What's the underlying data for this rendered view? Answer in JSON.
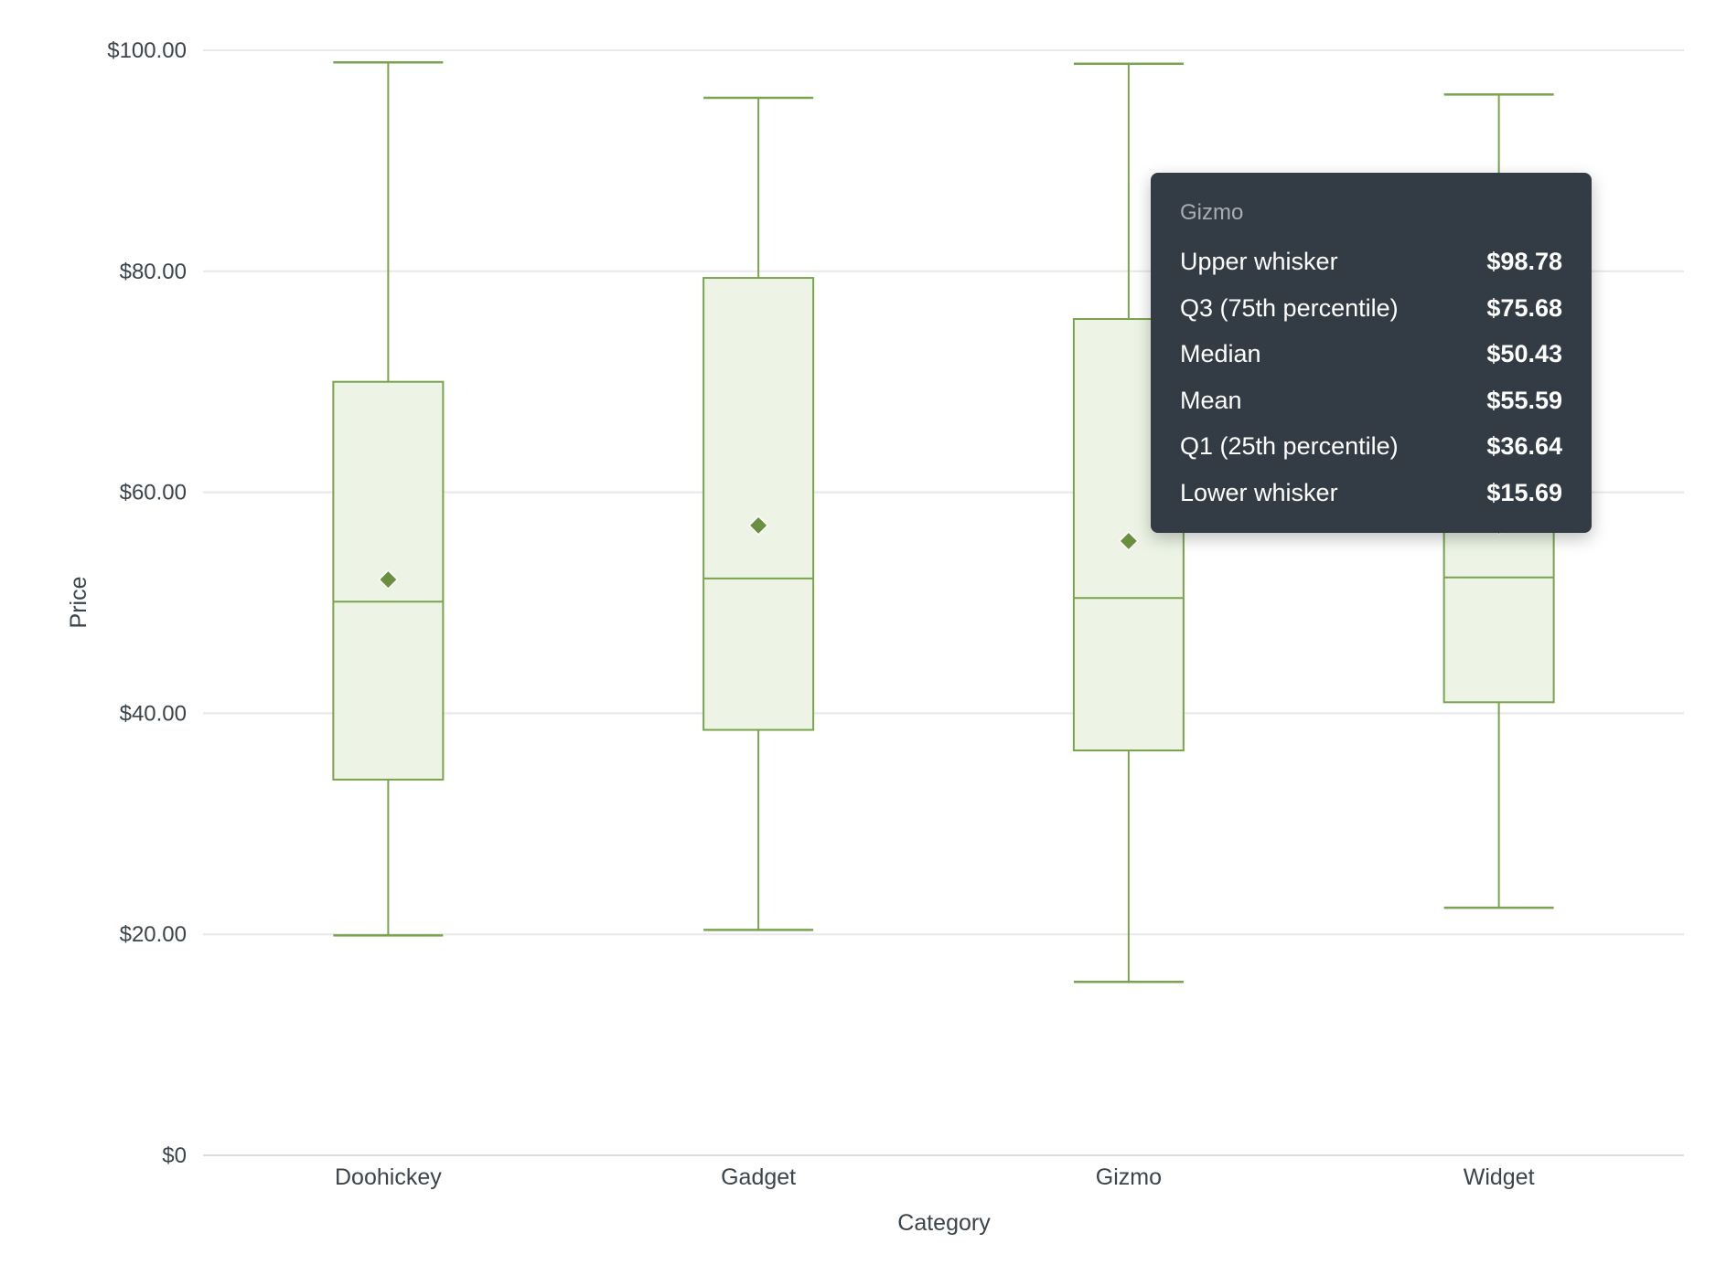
{
  "chart_data": {
    "type": "box",
    "title": "",
    "xlabel": "Category",
    "ylabel": "Price",
    "ylim": [
      0,
      100
    ],
    "yticks": [
      "$0",
      "$20.00",
      "$40.00",
      "$60.00",
      "$80.00",
      "$100.00"
    ],
    "ytick_values": [
      0,
      20,
      40,
      60,
      80,
      100
    ],
    "grid": true,
    "legend": null,
    "colors": {
      "stroke": "#7aa34e",
      "fill": "#edf4e5",
      "mean_marker": "#6a8f3f",
      "grid": "#e8e8e8"
    },
    "categories": [
      "Doohickey",
      "Gadget",
      "Gizmo",
      "Widget"
    ],
    "series": [
      {
        "name": "Doohickey",
        "upper_whisker": 98.9,
        "q3": 70.0,
        "median": 50.1,
        "mean": 52.1,
        "q1": 34.0,
        "lower_whisker": 19.9
      },
      {
        "name": "Gadget",
        "upper_whisker": 95.7,
        "q3": 79.4,
        "median": 52.2,
        "mean": 57.0,
        "q1": 38.5,
        "lower_whisker": 20.4
      },
      {
        "name": "Gizmo",
        "upper_whisker": 98.78,
        "q3": 75.68,
        "median": 50.43,
        "mean": 55.59,
        "q1": 36.64,
        "lower_whisker": 15.69
      },
      {
        "name": "Widget",
        "upper_whisker": 96.0,
        "q3": 76.0,
        "median": 52.3,
        "mean": 57.0,
        "q1": 41.0,
        "lower_whisker": 22.4
      }
    ]
  },
  "axes": {
    "x_title": "Category",
    "y_title": "Price",
    "y_ticks": [
      "$0",
      "$20.00",
      "$40.00",
      "$60.00",
      "$80.00",
      "$100.00"
    ],
    "x_ticks": [
      "Doohickey",
      "Gadget",
      "Gizmo",
      "Widget"
    ]
  },
  "tooltip": {
    "title": "Gizmo",
    "rows": [
      {
        "label": "Upper whisker",
        "value": "$98.78"
      },
      {
        "label": "Q3 (75th percentile)",
        "value": "$75.68"
      },
      {
        "label": "Median",
        "value": "$50.43"
      },
      {
        "label": "Mean",
        "value": "$55.59"
      },
      {
        "label": "Q1 (25th percentile)",
        "value": "$36.64"
      },
      {
        "label": "Lower whisker",
        "value": "$15.69"
      }
    ]
  }
}
